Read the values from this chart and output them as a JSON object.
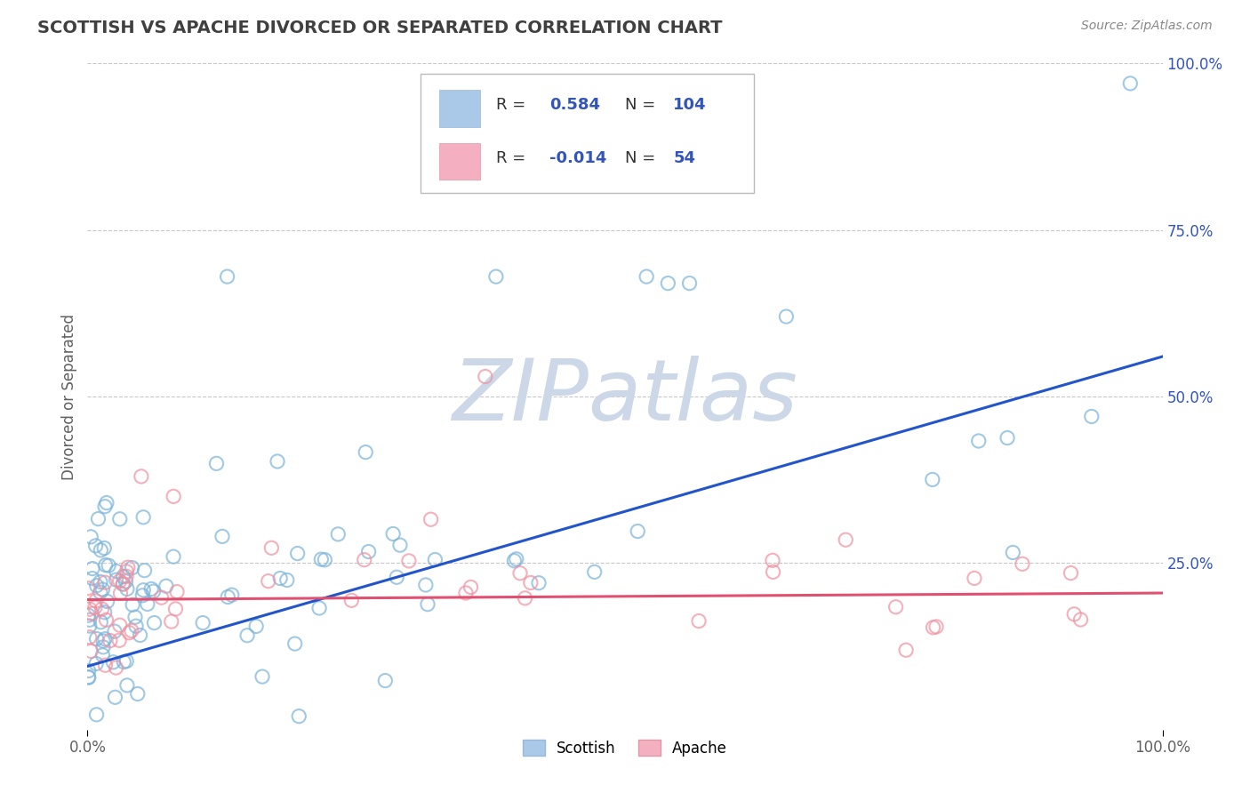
{
  "title": "SCOTTISH VS APACHE DIVORCED OR SEPARATED CORRELATION CHART",
  "source": "Source: ZipAtlas.com",
  "ylabel": "Divorced or Separated",
  "scottish_color": "#7ab3d9",
  "apache_color": "#f090a0",
  "scottish_line_color": "#2255cc",
  "apache_line_color": "#e05070",
  "background_color": "#ffffff",
  "grid_color": "#c8c8c8",
  "watermark_text": "ZIPatlas",
  "watermark_color": "#ccd8e8",
  "title_color": "#404040",
  "title_fontsize": 14,
  "axis_label_color": "#606060",
  "legend_blue_patch": "#aac8e8",
  "legend_pink_patch": "#f4b0c0",
  "legend_text_color": "#333333",
  "legend_value_color": "#3355bb",
  "r_scottish": 0.584,
  "n_scottish": 104,
  "r_apache": -0.014,
  "n_apache": 54
}
